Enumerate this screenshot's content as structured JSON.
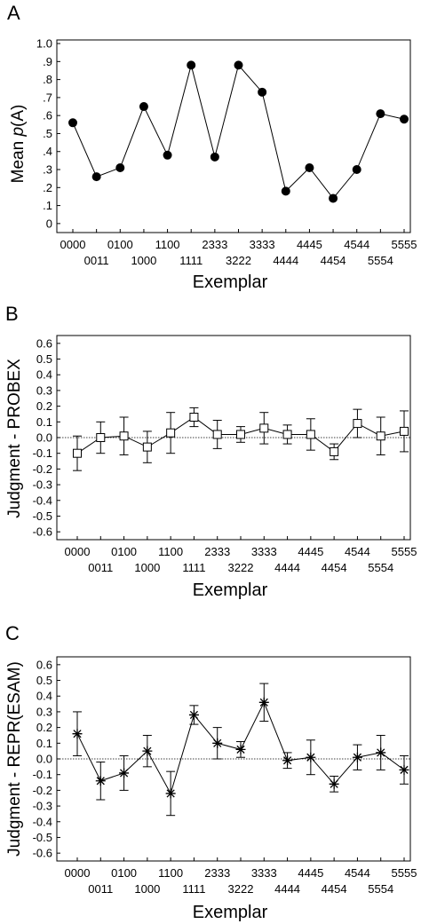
{
  "chart_data": [
    {
      "panel": "A",
      "type": "line",
      "marker": "filled-circle",
      "ylabel_parts": [
        "Mean ",
        "p",
        "(A)"
      ],
      "xlabel": "Exemplar",
      "ylim": [
        0,
        1.0
      ],
      "yticks": [
        {
          "v": 0,
          "label": "0"
        },
        {
          "v": 0.1,
          "label": ".1"
        },
        {
          "v": 0.2,
          "label": ".2"
        },
        {
          "v": 0.3,
          "label": ".3"
        },
        {
          "v": 0.4,
          "label": ".4"
        },
        {
          "v": 0.5,
          "label": ".5"
        },
        {
          "v": 0.6,
          "label": ".6"
        },
        {
          "v": 0.7,
          "label": ".7"
        },
        {
          "v": 0.8,
          "label": ".8"
        },
        {
          "v": 0.9,
          "label": ".9"
        },
        {
          "v": 1.0,
          "label": "1.0"
        }
      ],
      "categories": [
        "0000",
        "0011",
        "0100",
        "1000",
        "1100",
        "1111",
        "2333",
        "3222",
        "3333",
        "4444",
        "4445",
        "4454",
        "4544",
        "5554",
        "5555"
      ],
      "values": [
        0.56,
        0.26,
        0.31,
        0.65,
        0.38,
        0.88,
        0.37,
        0.88,
        0.73,
        0.18,
        0.31,
        0.14,
        0.3,
        0.61,
        0.58
      ],
      "reference_line": null
    },
    {
      "panel": "B",
      "type": "line",
      "marker": "open-square",
      "ylabel_parts": [
        "Judgment - PROBEX"
      ],
      "xlabel": "Exemplar",
      "ylim": [
        -0.65,
        0.65
      ],
      "yticks": [
        {
          "v": 0.6,
          "label": "0.6"
        },
        {
          "v": 0.5,
          "label": "0.5"
        },
        {
          "v": 0.4,
          "label": "0.4"
        },
        {
          "v": 0.3,
          "label": "0.3"
        },
        {
          "v": 0.2,
          "label": "0.2"
        },
        {
          "v": 0.1,
          "label": "0.1"
        },
        {
          "v": 0.0,
          "label": "0.0"
        },
        {
          "v": -0.1,
          "label": "-0.1"
        },
        {
          "v": -0.2,
          "label": "-0.2"
        },
        {
          "v": -0.3,
          "label": "-0.3"
        },
        {
          "v": -0.4,
          "label": "-0.4"
        },
        {
          "v": -0.5,
          "label": "-0.5"
        },
        {
          "v": -0.6,
          "label": "-0.6"
        }
      ],
      "categories": [
        "0000",
        "0011",
        "0100",
        "1000",
        "1100",
        "1111",
        "2333",
        "3222",
        "3333",
        "4444",
        "4445",
        "4454",
        "4544",
        "5554",
        "5555"
      ],
      "values": [
        -0.1,
        0.0,
        0.01,
        -0.06,
        0.03,
        0.13,
        0.02,
        0.02,
        0.06,
        0.02,
        0.02,
        -0.09,
        0.09,
        0.01,
        0.04
      ],
      "error": [
        0.11,
        0.1,
        0.12,
        0.1,
        0.13,
        0.06,
        0.09,
        0.05,
        0.1,
        0.06,
        0.1,
        0.05,
        0.09,
        0.12,
        0.13
      ],
      "reference_line": 0
    },
    {
      "panel": "C",
      "type": "line",
      "marker": "asterisk",
      "ylabel_parts": [
        "Judgment - REPR(ESAM)"
      ],
      "xlabel": "Exemplar",
      "ylim": [
        -0.65,
        0.65
      ],
      "yticks": [
        {
          "v": 0.6,
          "label": "0.6"
        },
        {
          "v": 0.5,
          "label": "0.5"
        },
        {
          "v": 0.4,
          "label": "0.4"
        },
        {
          "v": 0.3,
          "label": "0.3"
        },
        {
          "v": 0.2,
          "label": "0.2"
        },
        {
          "v": 0.1,
          "label": "0.1"
        },
        {
          "v": 0.0,
          "label": "0.0"
        },
        {
          "v": -0.1,
          "label": "-0.1"
        },
        {
          "v": -0.2,
          "label": "-0.2"
        },
        {
          "v": -0.3,
          "label": "-0.3"
        },
        {
          "v": -0.4,
          "label": "-0.4"
        },
        {
          "v": -0.5,
          "label": "-0.5"
        },
        {
          "v": -0.6,
          "label": "-0.6"
        }
      ],
      "categories": [
        "0000",
        "0011",
        "0100",
        "1000",
        "1100",
        "1111",
        "2333",
        "3222",
        "3333",
        "4444",
        "4445",
        "4454",
        "4544",
        "5554",
        "5555"
      ],
      "values": [
        0.16,
        -0.14,
        -0.09,
        0.05,
        -0.22,
        0.28,
        0.1,
        0.06,
        0.36,
        -0.01,
        0.01,
        -0.16,
        0.01,
        0.04,
        -0.07
      ],
      "error": [
        0.14,
        0.12,
        0.11,
        0.1,
        0.14,
        0.06,
        0.1,
        0.05,
        0.12,
        0.05,
        0.11,
        0.05,
        0.08,
        0.11,
        0.09
      ],
      "reference_line": 0
    }
  ]
}
